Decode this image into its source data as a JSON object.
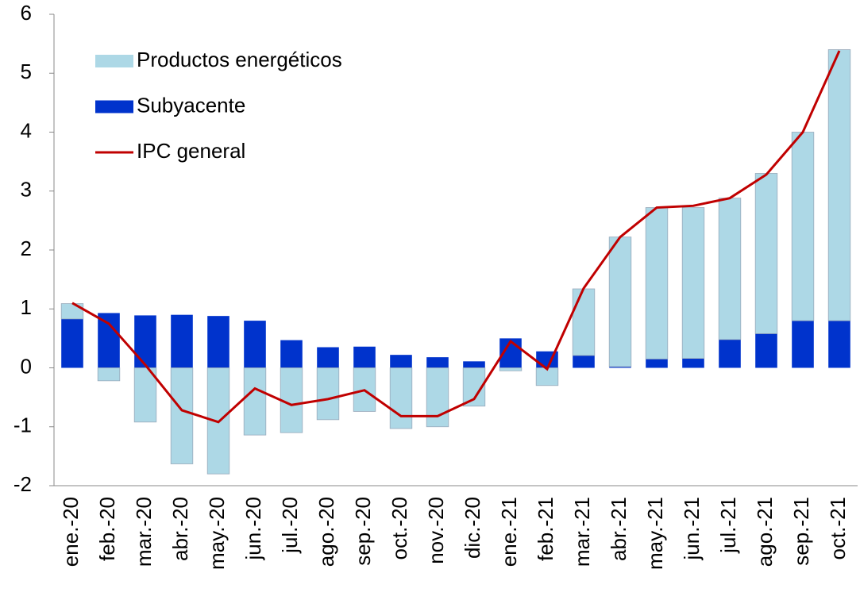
{
  "chart_data": {
    "type": "bar",
    "stacked": true,
    "categories": [
      "ene.-20",
      "feb.-20",
      "mar.-20",
      "abr.-20",
      "may.-20",
      "jun.-20",
      "jul.-20",
      "ago.-20",
      "sep.-20",
      "oct.-20",
      "nov.-20",
      "dic.-20",
      "ene.-21",
      "feb.-21",
      "mar.-21",
      "abr.-21",
      "may.-21",
      "jun.-21",
      "jul.-21",
      "ago.-21",
      "sep.-21",
      "oct.-21"
    ],
    "series": [
      {
        "name": "Productos energéticos",
        "type": "bar",
        "color": "#add8e6",
        "values": [
          0.26,
          -0.22,
          -0.92,
          -1.63,
          -1.8,
          -1.14,
          -1.1,
          -0.88,
          -0.74,
          -1.03,
          -1.0,
          -0.65,
          -0.05,
          -0.3,
          1.13,
          2.2,
          2.57,
          2.56,
          2.4,
          2.72,
          3.2,
          4.6
        ]
      },
      {
        "name": "Subyacente",
        "type": "bar",
        "color": "#0033cc",
        "values": [
          0.83,
          0.93,
          0.89,
          0.9,
          0.88,
          0.8,
          0.47,
          0.35,
          0.36,
          0.22,
          0.18,
          0.11,
          0.5,
          0.28,
          0.21,
          0.02,
          0.15,
          0.16,
          0.48,
          0.58,
          0.8,
          0.8
        ]
      },
      {
        "name": "IPC general",
        "type": "line",
        "color": "#c00000",
        "values": [
          1.1,
          0.75,
          0.05,
          -0.72,
          -0.92,
          -0.35,
          -0.63,
          -0.53,
          -0.38,
          -0.82,
          -0.82,
          -0.53,
          0.45,
          -0.02,
          1.35,
          2.22,
          2.72,
          2.75,
          2.88,
          3.28,
          4.0,
          5.38
        ]
      }
    ],
    "ylim": [
      -2,
      6
    ],
    "yticks": [
      -2,
      -1,
      0,
      1,
      2,
      3,
      4,
      5,
      6
    ],
    "grid": false,
    "legend": "top-left"
  }
}
